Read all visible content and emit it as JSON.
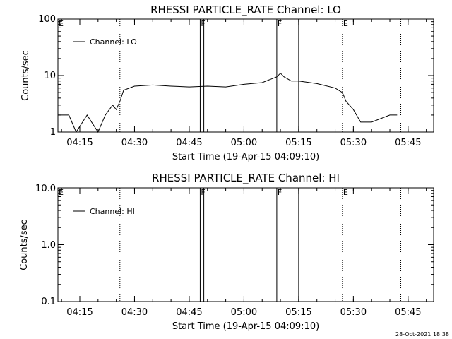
{
  "footer_timestamp": "28-Oct-2021 18:38",
  "chart_data": [
    {
      "type": "line",
      "title": "RHESSI PARTICLE_RATE Channel: LO",
      "xlabel": "Start Time (19-Apr-15 04:09:10)",
      "ylabel": "Counts/sec",
      "yscale": "log",
      "xlim": [
        "04:09",
        "05:52"
      ],
      "ylim": [
        1,
        100
      ],
      "xticks": [
        "04:15",
        "04:30",
        "04:45",
        "05:00",
        "05:15",
        "05:30",
        "05:45"
      ],
      "yticks": [
        "1",
        "10",
        "100"
      ],
      "legend": {
        "position": "top-left",
        "label": "Channel: LO"
      },
      "events": [
        {
          "label": "E",
          "time": "04:09",
          "style": "dotted"
        },
        {
          "label": "",
          "time": "04:26",
          "style": "dotted"
        },
        {
          "label": "F",
          "time": "04:48",
          "style": "solid"
        },
        {
          "label": "",
          "time": "04:49",
          "style": "solid"
        },
        {
          "label": "F",
          "time": "05:09",
          "style": "solid"
        },
        {
          "label": "",
          "time": "05:15",
          "style": "solid"
        },
        {
          "label": "E",
          "time": "05:27",
          "style": "dotted"
        },
        {
          "label": "",
          "time": "05:43",
          "style": "dotted"
        }
      ],
      "series": [
        {
          "name": "Channel: LO",
          "x": [
            "04:09",
            "04:12",
            "04:14",
            "04:17",
            "04:20",
            "04:22",
            "04:24",
            "04:25",
            "04:26",
            "04:27",
            "04:30",
            "04:35",
            "04:40",
            "04:45",
            "04:50",
            "04:55",
            "05:00",
            "05:05",
            "05:09",
            "05:10",
            "05:11",
            "05:13",
            "05:15",
            "05:20",
            "05:25",
            "05:27",
            "05:28",
            "05:30",
            "05:32",
            "05:35",
            "05:40",
            "05:42"
          ],
          "y": [
            2,
            2,
            1,
            2,
            1,
            2,
            3,
            2.5,
            3.5,
            5.5,
            6.5,
            6.8,
            6.5,
            6.3,
            6.5,
            6.3,
            7,
            7.5,
            9.5,
            11,
            9.5,
            8,
            8,
            7.2,
            6,
            5,
            3.5,
            2.5,
            1.5,
            1.5,
            2,
            2
          ]
        }
      ]
    },
    {
      "type": "line",
      "title": "RHESSI PARTICLE_RATE Channel: HI",
      "xlabel": "Start Time (19-Apr-15 04:09:10)",
      "ylabel": "Counts/sec",
      "yscale": "log",
      "xlim": [
        "04:09",
        "05:52"
      ],
      "ylim": [
        0.1,
        10
      ],
      "xticks": [
        "04:15",
        "04:30",
        "04:45",
        "05:00",
        "05:15",
        "05:30",
        "05:45"
      ],
      "yticks": [
        "0.1",
        "1.0",
        "10.0"
      ],
      "legend": {
        "position": "top-left",
        "label": "Channel: HI"
      },
      "events": [
        {
          "label": "E",
          "time": "04:09",
          "style": "dotted"
        },
        {
          "label": "",
          "time": "04:26",
          "style": "dotted"
        },
        {
          "label": "F",
          "time": "04:48",
          "style": "solid"
        },
        {
          "label": "",
          "time": "04:49",
          "style": "solid"
        },
        {
          "label": "F",
          "time": "05:09",
          "style": "solid"
        },
        {
          "label": "",
          "time": "05:15",
          "style": "solid"
        },
        {
          "label": "E",
          "time": "05:27",
          "style": "dotted"
        },
        {
          "label": "",
          "time": "05:43",
          "style": "dotted"
        }
      ],
      "series": [
        {
          "name": "Channel: HI",
          "x": [],
          "y": []
        }
      ]
    }
  ]
}
